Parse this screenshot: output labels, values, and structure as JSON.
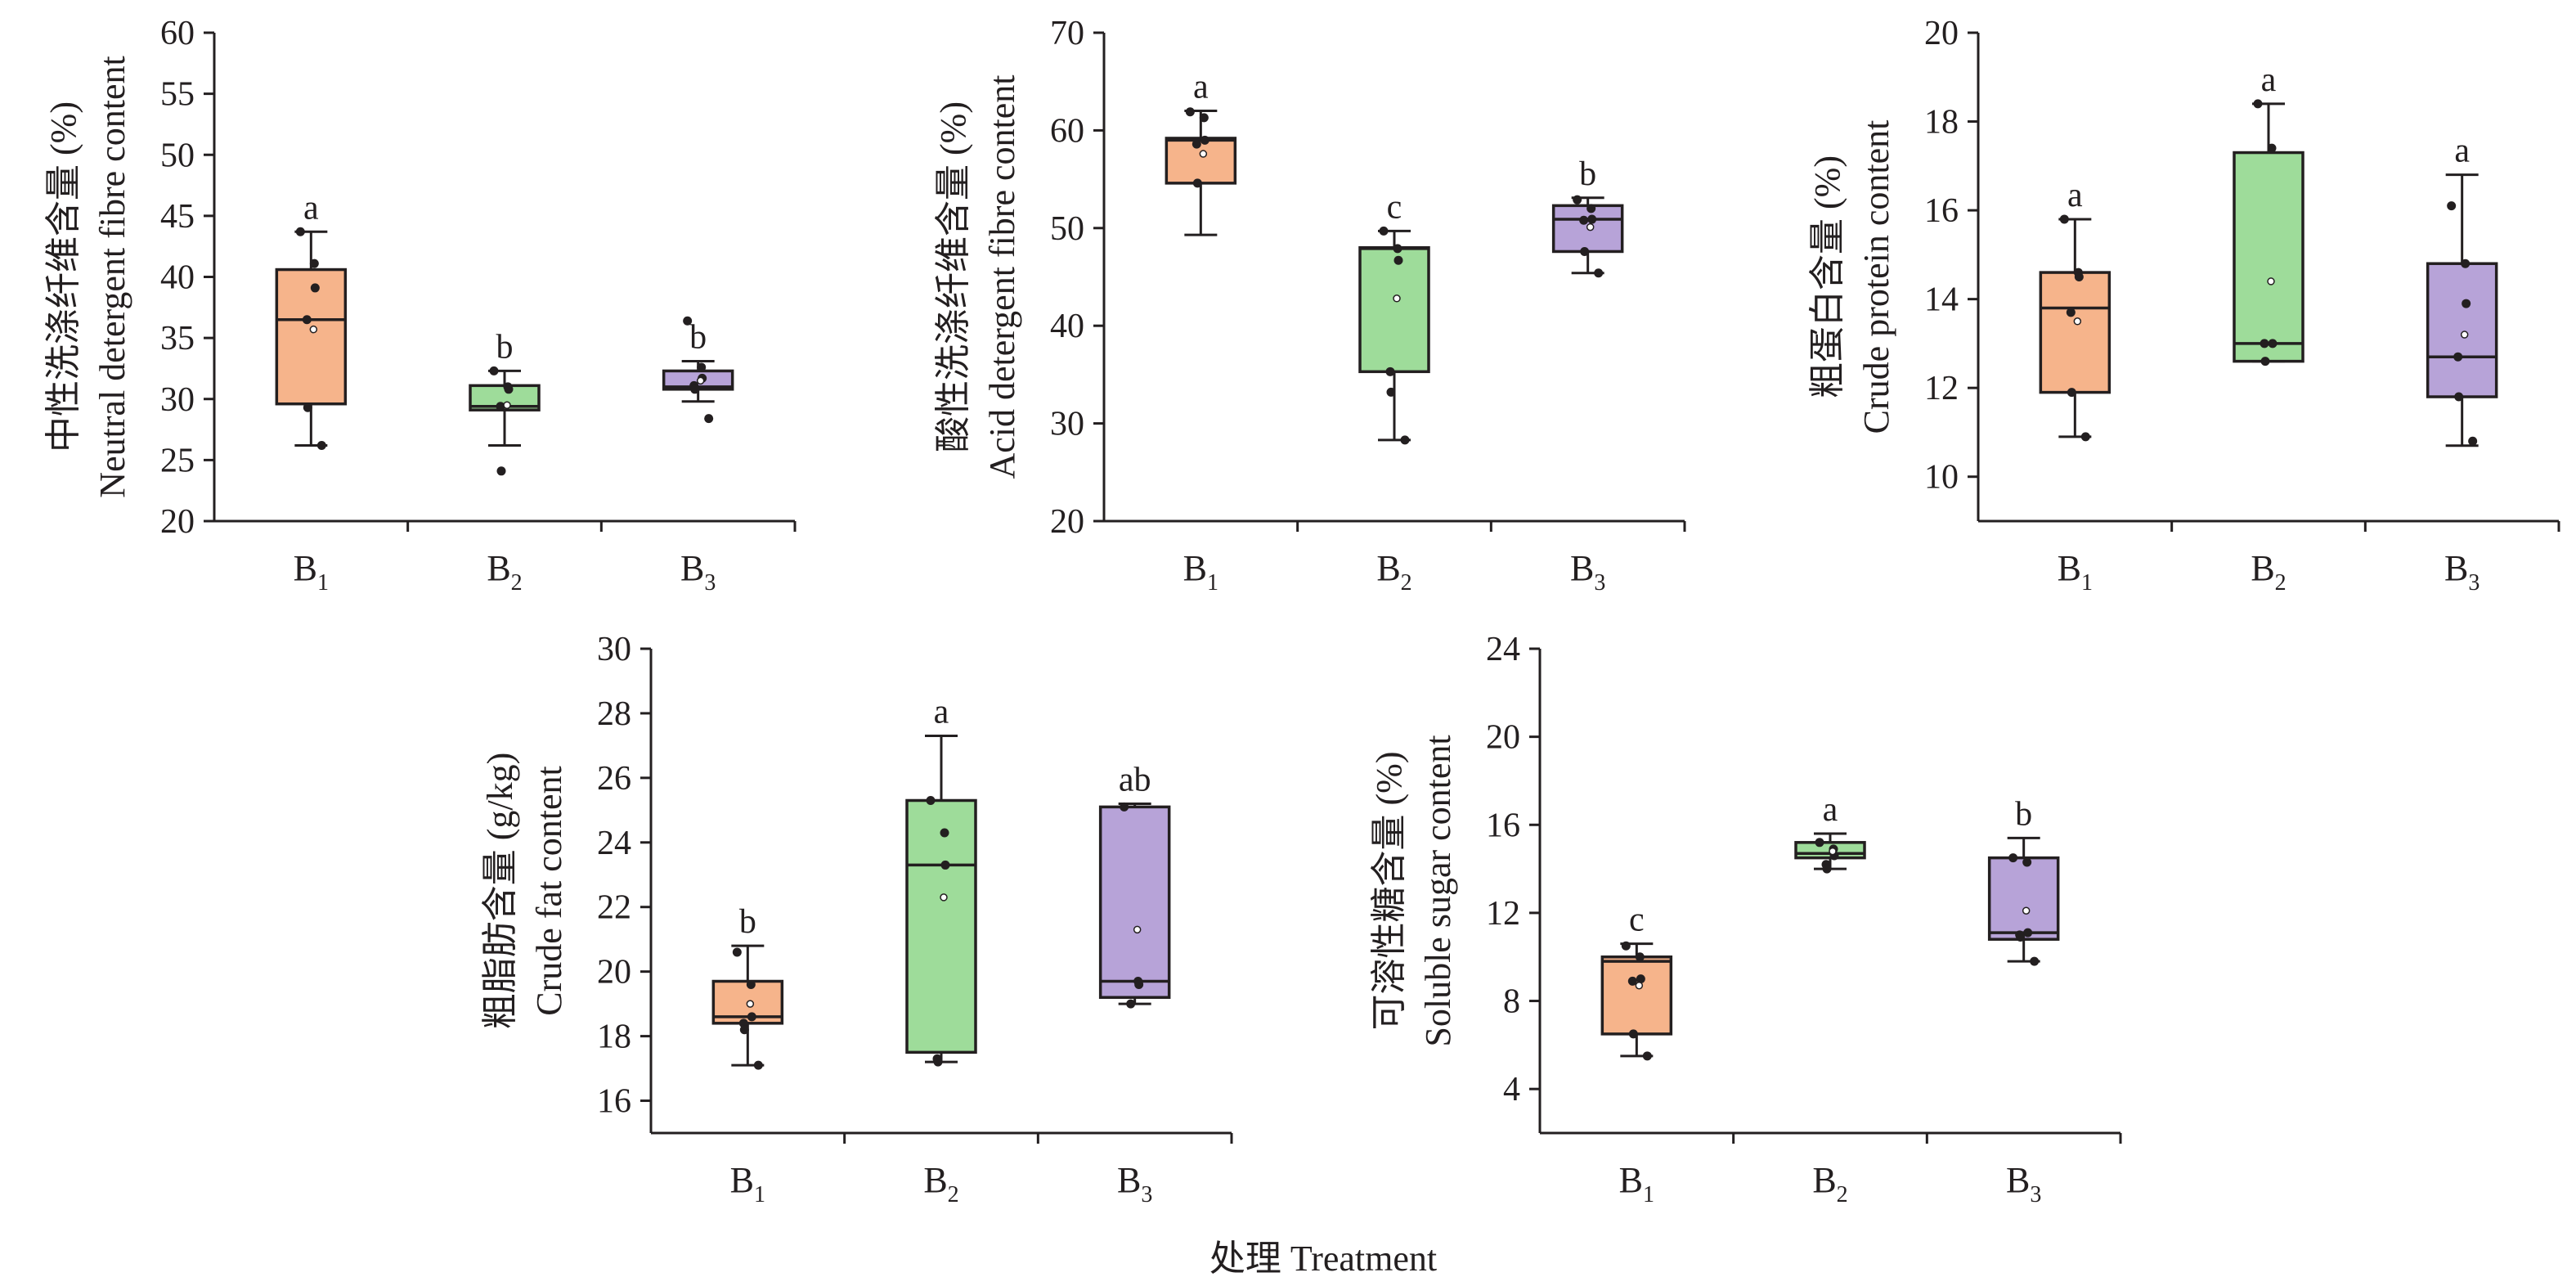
{
  "figure": {
    "xlabel": "处理 Treatment",
    "colors": {
      "B1": "#f6b48b",
      "B2": "#9edc9a",
      "B3": "#b7a3d8",
      "line": "#231f20"
    }
  },
  "chart_data": [
    {
      "type": "box",
      "ylabel_cn": "中性洗涤纤维含量 (%)",
      "ylabel_en": "Neutral detergent fibre content",
      "ylim": [
        20,
        60
      ],
      "yticks": [
        20,
        25,
        30,
        35,
        40,
        45,
        50,
        55,
        60
      ],
      "categories": [
        "B1",
        "B2",
        "B3"
      ],
      "boxes": [
        {
          "name": "B1",
          "min": 26.2,
          "q1": 29.6,
          "median": 36.5,
          "q3": 40.6,
          "max": 43.7,
          "mean": 35.7,
          "letter": "a",
          "points": [
            43.7,
            41.1,
            39.1,
            36.5,
            29.3,
            26.2
          ]
        },
        {
          "name": "B2",
          "min": 26.2,
          "q1": 29.1,
          "median": 29.4,
          "q3": 31.1,
          "max": 32.3,
          "mean": 29.5,
          "letter": "b",
          "points": [
            32.3,
            31.0,
            30.8,
            29.4,
            24.1
          ]
        },
        {
          "name": "B3",
          "min": 29.8,
          "q1": 30.8,
          "median": 31.0,
          "q3": 32.3,
          "max": 33.1,
          "mean": 31.5,
          "letter": "b",
          "points": [
            36.4,
            32.6,
            31.7,
            31.1,
            30.8,
            28.4
          ]
        }
      ]
    },
    {
      "type": "box",
      "ylabel_cn": "酸性洗涤纤维含量 (%)",
      "ylabel_en": "Acid detergent fibre content",
      "ylim": [
        20,
        70
      ],
      "yticks": [
        20,
        30,
        40,
        50,
        60,
        70
      ],
      "categories": [
        "B1",
        "B2",
        "B3"
      ],
      "boxes": [
        {
          "name": "B1",
          "min": 49.3,
          "q1": 54.6,
          "median": 59.0,
          "q3": 59.2,
          "max": 62.0,
          "mean": 57.6,
          "letter": "a",
          "points": [
            61.9,
            61.3,
            59.0,
            58.6,
            54.6
          ]
        },
        {
          "name": "B2",
          "min": 28.3,
          "q1": 35.3,
          "median": 47.9,
          "q3": 48.0,
          "max": 49.7,
          "mean": 42.8,
          "letter": "c",
          "points": [
            49.7,
            47.9,
            46.7,
            35.3,
            33.2,
            28.3
          ]
        },
        {
          "name": "B3",
          "min": 45.4,
          "q1": 47.6,
          "median": 50.9,
          "q3": 52.3,
          "max": 53.1,
          "mean": 50.1,
          "letter": "b",
          "points": [
            52.9,
            52.0,
            50.9,
            50.8,
            47.6,
            45.4
          ]
        }
      ]
    },
    {
      "type": "box",
      "ylabel_cn": "粗蛋白含量 (%)",
      "ylabel_en": "Crude protein content",
      "ylim": [
        9,
        20
      ],
      "yticks": [
        10,
        12,
        14,
        16,
        18,
        20
      ],
      "categories": [
        "B1",
        "B2",
        "B3"
      ],
      "boxes": [
        {
          "name": "B1",
          "min": 10.9,
          "q1": 11.9,
          "median": 13.8,
          "q3": 14.6,
          "max": 15.8,
          "mean": 13.5,
          "letter": "a",
          "points": [
            15.8,
            14.6,
            14.5,
            13.7,
            11.9,
            10.9
          ]
        },
        {
          "name": "B2",
          "min": 12.6,
          "q1": 12.6,
          "median": 13.0,
          "q3": 17.3,
          "max": 18.4,
          "mean": 14.4,
          "letter": "a",
          "points": [
            18.4,
            17.4,
            13.0,
            13.0,
            12.6
          ]
        },
        {
          "name": "B3",
          "min": 10.7,
          "q1": 11.8,
          "median": 12.7,
          "q3": 14.8,
          "max": 16.8,
          "mean": 13.2,
          "letter": "a",
          "points": [
            16.1,
            14.8,
            13.9,
            12.7,
            11.8,
            10.8
          ]
        }
      ]
    },
    {
      "type": "box",
      "ylabel_cn": "粗脂肪含量 (g/kg)",
      "ylabel_en": "Crude fat content",
      "ylim": [
        15,
        30
      ],
      "yticks": [
        16,
        18,
        20,
        22,
        24,
        26,
        28,
        30
      ],
      "categories": [
        "B1",
        "B2",
        "B3"
      ],
      "boxes": [
        {
          "name": "B1",
          "min": 17.1,
          "q1": 18.4,
          "median": 18.6,
          "q3": 19.7,
          "max": 20.8,
          "mean": 19.0,
          "letter": "b",
          "points": [
            20.6,
            19.6,
            18.6,
            18.4,
            18.2,
            17.1
          ]
        },
        {
          "name": "B2",
          "min": 17.2,
          "q1": 17.5,
          "median": 23.3,
          "q3": 25.3,
          "max": 27.3,
          "mean": 22.3,
          "letter": "a",
          "points": [
            25.3,
            24.3,
            23.3,
            17.3,
            17.2
          ]
        },
        {
          "name": "B3",
          "min": 19.0,
          "q1": 19.2,
          "median": 19.7,
          "q3": 25.1,
          "max": 25.2,
          "mean": 21.3,
          "letter": "ab",
          "points": [
            25.1,
            19.7,
            19.6,
            19.0
          ]
        }
      ]
    },
    {
      "type": "box",
      "ylabel_cn": "可溶性糖含量 (%)",
      "ylabel_en": "Soluble sugar content",
      "ylim": [
        2,
        24
      ],
      "yticks": [
        4,
        8,
        12,
        16,
        20,
        24
      ],
      "categories": [
        "B1",
        "B2",
        "B3"
      ],
      "boxes": [
        {
          "name": "B1",
          "min": 5.5,
          "q1": 6.5,
          "median": 9.8,
          "q3": 10.0,
          "max": 10.6,
          "mean": 8.7,
          "letter": "c",
          "points": [
            10.5,
            10.0,
            9.0,
            8.9,
            6.5,
            5.5
          ]
        },
        {
          "name": "B2",
          "min": 14.0,
          "q1": 14.5,
          "median": 14.7,
          "q3": 15.2,
          "max": 15.6,
          "mean": 14.8,
          "letter": "a",
          "points": [
            15.2,
            14.9,
            14.6,
            14.2,
            14.0
          ]
        },
        {
          "name": "B3",
          "min": 9.8,
          "q1": 10.8,
          "median": 11.1,
          "q3": 14.5,
          "max": 15.4,
          "mean": 12.1,
          "letter": "b",
          "points": [
            14.5,
            14.3,
            11.1,
            11.0,
            10.9,
            9.8
          ]
        }
      ]
    }
  ]
}
